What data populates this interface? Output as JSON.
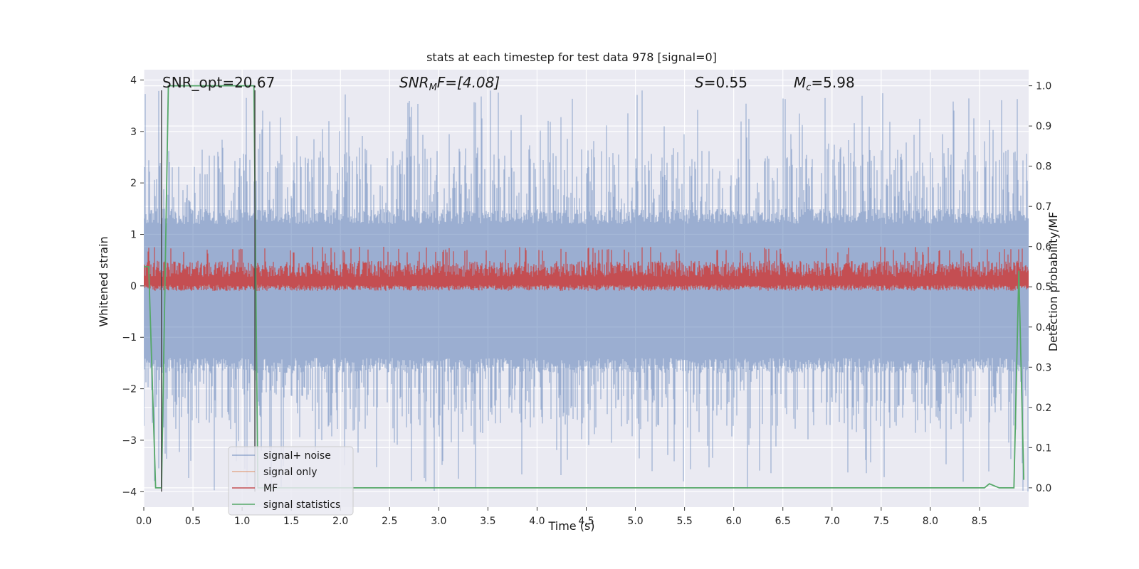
{
  "chart_data": {
    "type": "line",
    "title": "stats at each timestep for test data 978 [signal=0]",
    "xlabel": "Time (s)",
    "ylabel": "Whitened strain",
    "y2label": "Detection probability/MF",
    "xlim": [
      0.0,
      9.0
    ],
    "ylim": [
      -4.3,
      4.2
    ],
    "y2lim": [
      -0.048,
      1.04
    ],
    "xticks": [
      0.0,
      0.5,
      1.0,
      1.5,
      2.0,
      2.5,
      3.0,
      3.5,
      4.0,
      4.5,
      5.0,
      5.5,
      6.0,
      6.5,
      7.0,
      7.5,
      8.0,
      8.5
    ],
    "xtick_labels": [
      "0.0",
      "0.5",
      "1.0",
      "1.5",
      "2.0",
      "2.5",
      "3.0",
      "3.5",
      "4.0",
      "4.5",
      "5.0",
      "5.5",
      "6.0",
      "6.5",
      "7.0",
      "7.5",
      "8.0",
      "8.5"
    ],
    "yticks": [
      -4,
      -3,
      -2,
      -1,
      0,
      1,
      2,
      3,
      4
    ],
    "ytick_labels": [
      "−4",
      "−3",
      "−2",
      "−1",
      "0",
      "1",
      "2",
      "3",
      "4"
    ],
    "y2ticks": [
      0.0,
      0.1,
      0.2,
      0.3,
      0.4,
      0.5,
      0.6,
      0.7,
      0.8,
      0.9,
      1.0
    ],
    "y2tick_labels": [
      "0.0",
      "0.1",
      "0.2",
      "0.3",
      "0.4",
      "0.5",
      "0.6",
      "0.7",
      "0.8",
      "0.9",
      "1.0"
    ],
    "grid": true,
    "legend_position": "lower-left",
    "annotations": {
      "snr_opt": "SNR_opt=20.67",
      "snr_mf_italic": "SNR",
      "snr_mf_sub": "M",
      "snr_mf_rest": "F=[4.08]",
      "s_symbol": "S",
      "s_value": "=0.55",
      "mc_symbol": "M",
      "mc_sub": "c",
      "mc_value": "=5.98"
    },
    "vertical_markers_s": [
      0.18,
      1.13
    ],
    "series": [
      {
        "name": "signal+ noise",
        "color": "#4c72b0",
        "axis": "left",
        "description": "whitened noise band, roughly symmetric about 0 with spikes to about +3.8 and -4",
        "band_core": [
          -1.7,
          1.5
        ],
        "spike_range": [
          -4.0,
          3.8
        ]
      },
      {
        "name": "signal only",
        "color": "#dd8452",
        "axis": "left",
        "values_constant": 0.0
      },
      {
        "name": "MF",
        "color": "#c44e52",
        "axis": "right",
        "band": [
          0.5,
          0.58
        ],
        "peak": 0.6
      },
      {
        "name": "signal statistics",
        "color": "#55a868",
        "axis": "right",
        "x": [
          0.0,
          0.05,
          0.12,
          0.18,
          0.25,
          1.12,
          1.16,
          1.2,
          8.55,
          8.6,
          8.7,
          8.85,
          8.9,
          8.95
        ],
        "y": [
          0.55,
          0.55,
          0.0,
          0.0,
          1.0,
          1.0,
          0.0,
          0.0,
          0.0,
          0.01,
          0.0,
          0.0,
          0.54,
          0.02
        ]
      }
    ]
  }
}
